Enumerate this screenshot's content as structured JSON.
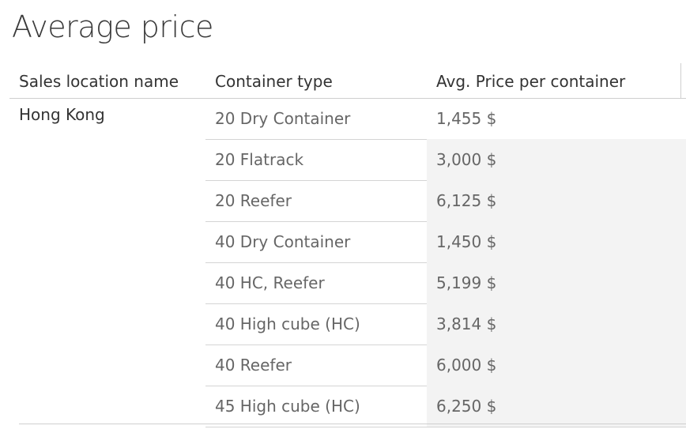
{
  "title": "Average price",
  "table": {
    "headers": {
      "location": "Sales location name",
      "container": "Container type",
      "price": "Avg. Price per container"
    },
    "location": "Hong Kong",
    "rows": [
      {
        "container": "20 Dry Container",
        "price": "1,455 $"
      },
      {
        "container": "20 Flatrack",
        "price": "3,000 $"
      },
      {
        "container": "20 Reefer",
        "price": "6,125 $"
      },
      {
        "container": "40 Dry Container",
        "price": "1,450 $"
      },
      {
        "container": "40 HC, Reefer",
        "price": "5,199 $"
      },
      {
        "container": "40 High cube (HC)",
        "price": "3,814 $"
      },
      {
        "container": "40 Reefer",
        "price": "6,000 $"
      },
      {
        "container": "45 High cube (HC)",
        "price": "6,250 $"
      }
    ]
  },
  "colors": {
    "text_header": "#333333",
    "text_cell": "#666666",
    "shade": "#f3f3f3",
    "border": "#d4d4d4"
  }
}
